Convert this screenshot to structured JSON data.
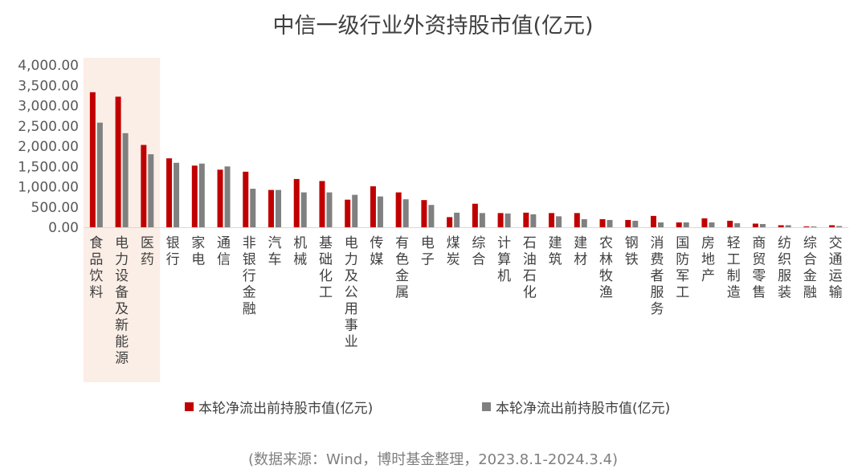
{
  "chart_data": {
    "type": "bar",
    "title": "中信一级行业外资持股市值(亿元)",
    "categories": [
      "食品饮料",
      "电力设备及新能源",
      "医药",
      "银行",
      "家电",
      "通信",
      "非银行金融",
      "汽车",
      "机械",
      "基础化工",
      "电力及公用事业",
      "传媒",
      "有色金属",
      "电子",
      "煤炭",
      "综合",
      "计算机",
      "石油石化",
      "建筑",
      "建材",
      "农林牧渔",
      "钢铁",
      "消费者服务",
      "国防军工",
      "房地产",
      "轻工制造",
      "商贸零售",
      "纺织服装",
      "综合金融",
      "交通运输"
    ],
    "series": [
      {
        "name": "本轮净流出前持股市值(亿元)",
        "color": "#c00000",
        "values": [
          3330,
          3220,
          2030,
          1700,
          1520,
          1420,
          1370,
          920,
          1190,
          1140,
          680,
          1010,
          860,
          670,
          250,
          580,
          350,
          360,
          350,
          350,
          200,
          180,
          280,
          120,
          220,
          160,
          90,
          50,
          20,
          50
        ]
      },
      {
        "name": "本轮净流出前持股市值(亿元)",
        "color": "#808080",
        "values": [
          2580,
          2320,
          1800,
          1590,
          1570,
          1500,
          950,
          920,
          860,
          860,
          800,
          760,
          690,
          550,
          360,
          350,
          340,
          320,
          270,
          200,
          180,
          160,
          120,
          120,
          120,
          100,
          80,
          50,
          20,
          30
        ]
      }
    ],
    "ylim": [
      0,
      4000
    ],
    "yticks": [
      "0.00",
      "500.00",
      "1,000.00",
      "1,500.00",
      "2,000.00",
      "2,500.00",
      "3,000.00",
      "3,500.00",
      "4,000.00"
    ],
    "highlight_categories": [
      "食品饮料",
      "电力设备及新能源",
      "医药"
    ],
    "highlight_color": "#fbeee6",
    "grid": false,
    "legend_position": "bottom"
  },
  "source_note": "(数据来源：Wind，博时基金整理，2023.8.1-2024.3.4)"
}
